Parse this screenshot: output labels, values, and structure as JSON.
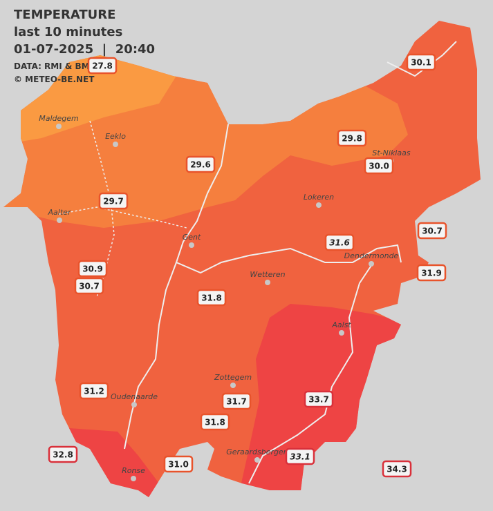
{
  "header": {
    "title": "TEMPERATURE",
    "subtitle": "last 10 minutes",
    "datetime": "01-07-2025  |  20:40",
    "source": "DATA: RMI & BMKB",
    "credit": "© METEO-BE.NET"
  },
  "cities": [
    {
      "name": "Maldegem"
    },
    {
      "name": "Eeklo"
    },
    {
      "name": "St-Niklaas"
    },
    {
      "name": "Lokeren"
    },
    {
      "name": "Aalter"
    },
    {
      "name": "Gent"
    },
    {
      "name": "Dendermonde"
    },
    {
      "name": "Wetteren"
    },
    {
      "name": "Aalst"
    },
    {
      "name": "Zottegem"
    },
    {
      "name": "Oudenaarde"
    },
    {
      "name": "Geraardsbergen"
    },
    {
      "name": "Ronse"
    }
  ],
  "stations": [
    {
      "temp": "30.1"
    },
    {
      "temp": "29.8"
    },
    {
      "temp": "30.0"
    },
    {
      "temp": "29.6"
    },
    {
      "temp": "29.7"
    },
    {
      "temp": "30.7"
    },
    {
      "temp": "31.6"
    },
    {
      "temp": "30.9"
    },
    {
      "temp": "30.7"
    },
    {
      "temp": "31.9"
    },
    {
      "temp": "31.8"
    },
    {
      "temp": "31.2"
    },
    {
      "temp": "33.7"
    },
    {
      "temp": "31.7"
    },
    {
      "temp": "31.8"
    },
    {
      "temp": "32.8"
    },
    {
      "temp": "33.1"
    },
    {
      "temp": "31.0"
    },
    {
      "temp": "34.3"
    },
    {
      "temp": "27.8"
    }
  ]
}
